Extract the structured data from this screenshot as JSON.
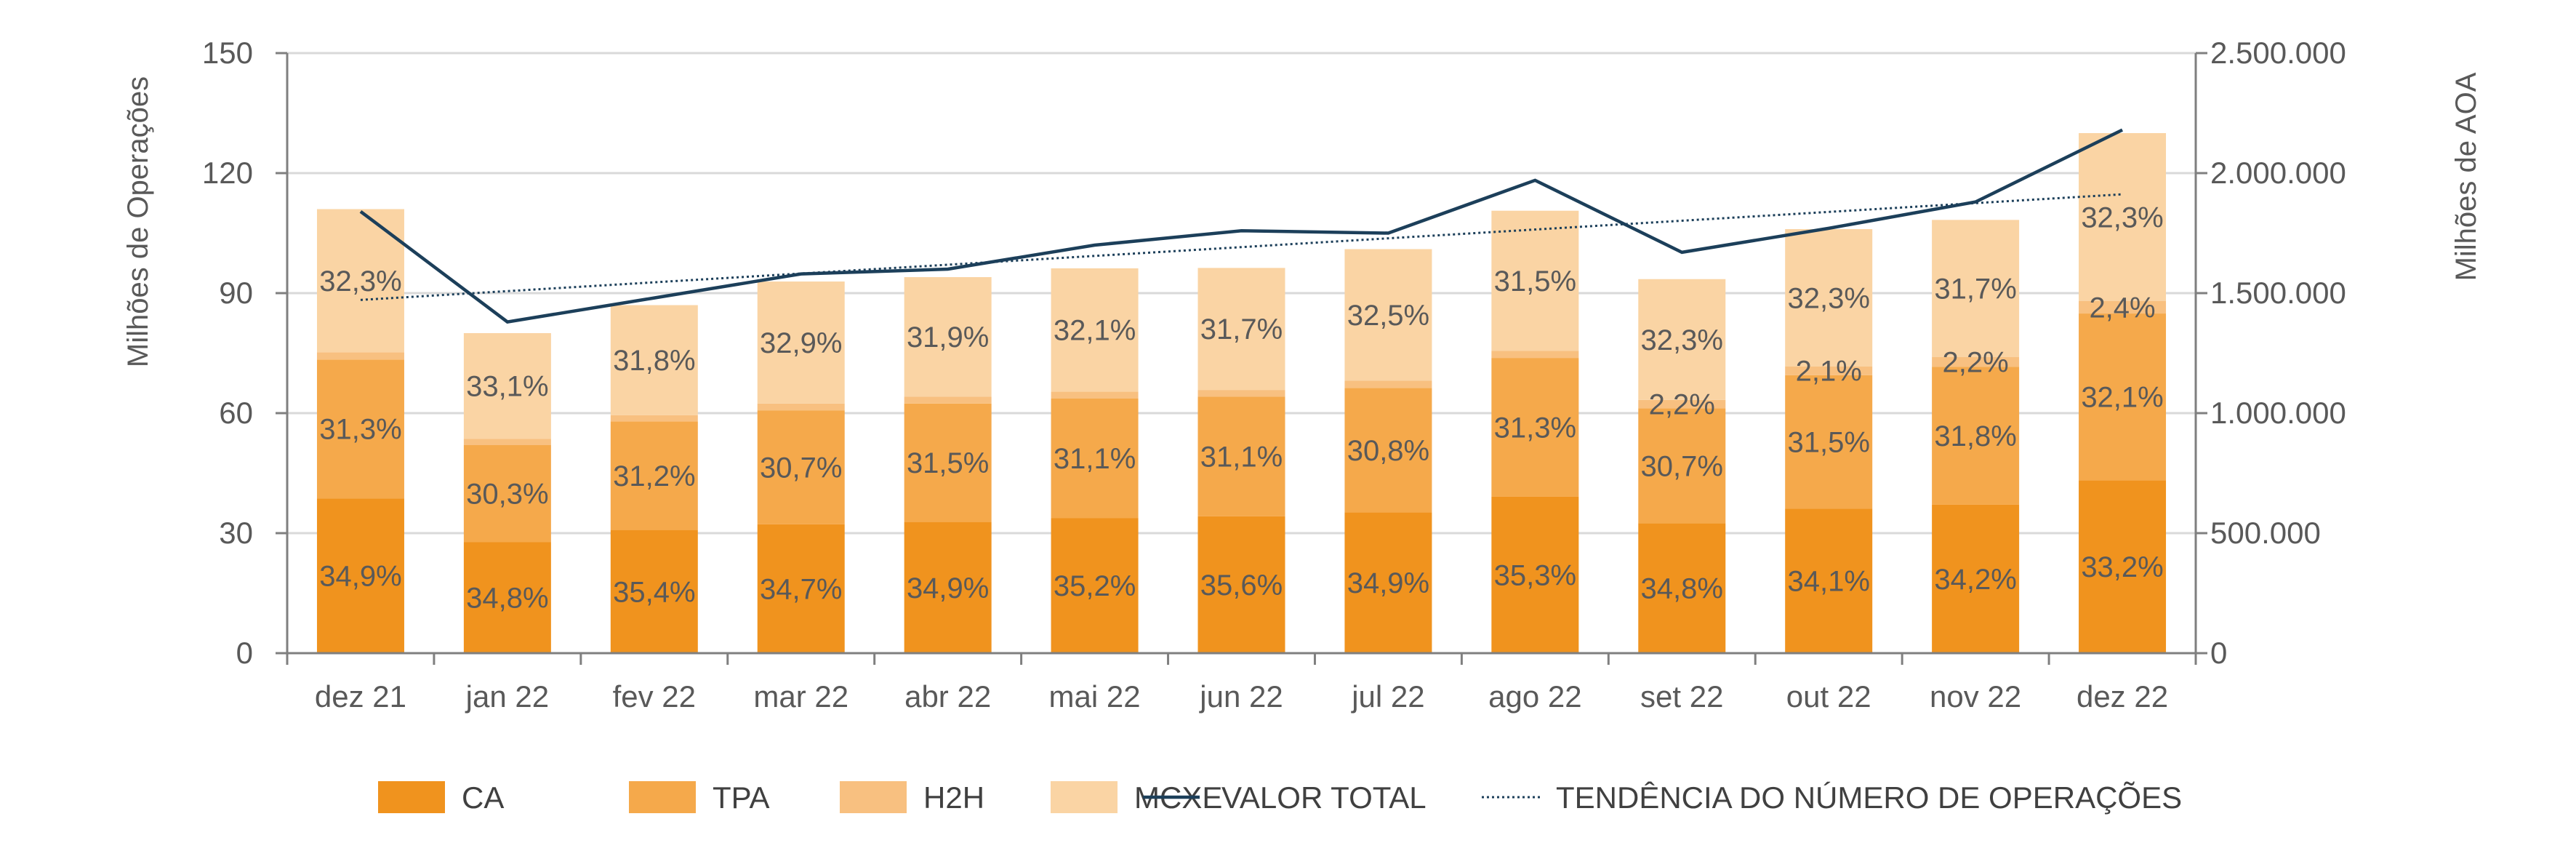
{
  "chart_data": {
    "type": "bar",
    "stacked": true,
    "categories": [
      "dez 21",
      "jan 22",
      "fev 22",
      "mar 22",
      "abr 22",
      "mai 22",
      "jun 22",
      "jul 22",
      "ago 22",
      "set 22",
      "out 22",
      "nov 22",
      "dez 22"
    ],
    "series": [
      {
        "name": "CA",
        "color": "#F0931E",
        "values": [
          38.7,
          27.8,
          30.8,
          32.2,
          32.8,
          33.8,
          34.2,
          35.2,
          39.1,
          32.5,
          36.1,
          37.1,
          43.2
        ],
        "labels": [
          "34,9%",
          "34,8%",
          "35,4%",
          "34,7%",
          "34,9%",
          "35,2%",
          "35,6%",
          "34,9%",
          "35,3%",
          "34,8%",
          "34,1%",
          "34,2%",
          "33,2%"
        ]
      },
      {
        "name": "TPA",
        "color": "#F5A94B",
        "values": [
          34.7,
          24.2,
          27.1,
          28.5,
          29.6,
          29.9,
          29.9,
          31.1,
          34.7,
          28.7,
          33.4,
          34.5,
          41.7
        ],
        "labels": [
          "31,3%",
          "30,3%",
          "31,2%",
          "30,7%",
          "31,5%",
          "31,1%",
          "31,1%",
          "30,8%",
          "31,3%",
          "30,7%",
          "31,5%",
          "31,8%",
          "32,1%"
        ]
      },
      {
        "name": "H2H",
        "color": "#F8C080",
        "values": [
          1.8,
          1.6,
          1.6,
          1.7,
          1.7,
          1.7,
          1.7,
          1.8,
          1.8,
          2.1,
          2.2,
          2.4,
          3.1
        ],
        "labels": [
          "",
          "",
          "",
          "",
          "",
          "",
          "",
          "",
          "",
          "2,2%",
          "2,1%",
          "2,2%",
          "2,4%"
        ]
      },
      {
        "name": "MCXE",
        "color": "#FAD4A4",
        "values": [
          35.8,
          26.4,
          27.5,
          30.5,
          29.9,
          30.8,
          30.5,
          32.9,
          35.0,
          30.2,
          34.3,
          34.3,
          42.0
        ],
        "labels": [
          "32,3%",
          "33,1%",
          "31,8%",
          "32,9%",
          "31,9%",
          "32,1%",
          "31,7%",
          "32,5%",
          "31,5%",
          "32,3%",
          "32,3%",
          "31,7%",
          "32,3%"
        ]
      }
    ],
    "line_series": [
      {
        "name": "VALOR TOTAL",
        "axis": "right",
        "color": "#1C3F5A",
        "values": [
          1840000,
          1380000,
          1480000,
          1580000,
          1600000,
          1700000,
          1760000,
          1750000,
          1970000,
          1670000,
          1770000,
          1880000,
          2180000
        ]
      },
      {
        "name": "TENDÊNCIA DO NÚMERO DE OPERAÇÕES",
        "axis": "left",
        "style": "dotted",
        "color": "#1C3F5A",
        "values": [
          88.3,
          90.5,
          92.7,
          94.9,
          97.1,
          99.3,
          101.5,
          103.7,
          105.9,
          108.1,
          110.3,
          112.5,
          114.7
        ]
      }
    ],
    "ylabel": "Milhões de Operações",
    "ylabel_right": "Milhões de AOA",
    "ylim": [
      0,
      150
    ],
    "yticks": [
      0,
      30,
      60,
      90,
      120,
      150
    ],
    "ylim_right": [
      0,
      2500000
    ],
    "yticks_right": [
      0,
      500000,
      1000000,
      1500000,
      2000000,
      2500000
    ],
    "ytick_labels_right": [
      "0",
      "500.000",
      "1.000.000",
      "1.500.000",
      "2.000.000",
      "2.500.000"
    ],
    "grid": true,
    "legend_position": "bottom"
  }
}
